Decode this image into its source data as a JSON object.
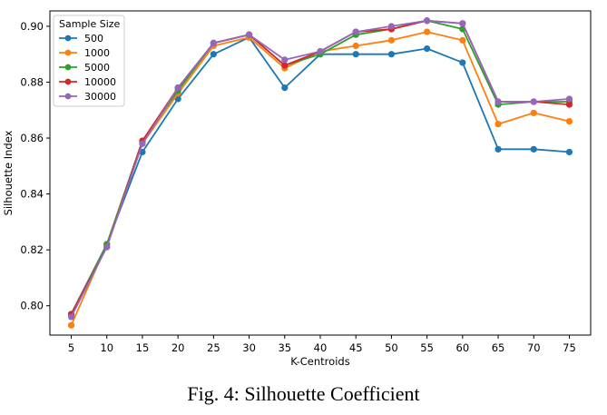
{
  "caption": "Fig. 4: Silhouette Coefficient",
  "chart_data": {
    "type": "line",
    "title": "",
    "xlabel": "K-Centroids",
    "ylabel": "Silhouette Index",
    "x": [
      5,
      10,
      15,
      20,
      25,
      30,
      35,
      40,
      45,
      50,
      55,
      60,
      65,
      70,
      75
    ],
    "xlim": [
      2,
      78
    ],
    "ylim": [
      0.7895,
      0.9055
    ],
    "yticks": [
      "0.80",
      "0.82",
      "0.84",
      "0.86",
      "0.88",
      "0.90"
    ],
    "xticks": [
      "5",
      "10",
      "15",
      "20",
      "25",
      "30",
      "35",
      "40",
      "45",
      "50",
      "55",
      "60",
      "65",
      "70",
      "75"
    ],
    "grid": false,
    "legend_title": "Sample Size",
    "legend_position": "top-left",
    "series": [
      {
        "name": "500",
        "color": "#1f77b4",
        "values": [
          0.797,
          0.822,
          0.855,
          0.874,
          0.89,
          0.896,
          0.878,
          0.89,
          0.89,
          0.89,
          0.892,
          0.887,
          0.856,
          0.856,
          0.855
        ]
      },
      {
        "name": "1000",
        "color": "#ff7f0e",
        "values": [
          0.793,
          0.822,
          0.858,
          0.876,
          0.893,
          0.896,
          0.885,
          0.891,
          0.893,
          0.895,
          0.898,
          0.895,
          0.865,
          0.869,
          0.866
        ]
      },
      {
        "name": "5000",
        "color": "#2ca02c",
        "values": [
          0.797,
          0.822,
          0.859,
          0.877,
          0.894,
          0.897,
          0.886,
          0.89,
          0.897,
          0.899,
          0.902,
          0.899,
          0.872,
          0.873,
          0.873
        ]
      },
      {
        "name": "10000",
        "color": "#d62728",
        "values": [
          0.797,
          0.821,
          0.859,
          0.878,
          0.894,
          0.897,
          0.886,
          0.891,
          0.898,
          0.899,
          0.902,
          0.901,
          0.873,
          0.873,
          0.872
        ]
      },
      {
        "name": "30000",
        "color": "#9467bd",
        "values": [
          0.796,
          0.821,
          0.858,
          0.878,
          0.894,
          0.897,
          0.888,
          0.891,
          0.898,
          0.9,
          0.902,
          0.901,
          0.873,
          0.873,
          0.874
        ]
      }
    ]
  }
}
